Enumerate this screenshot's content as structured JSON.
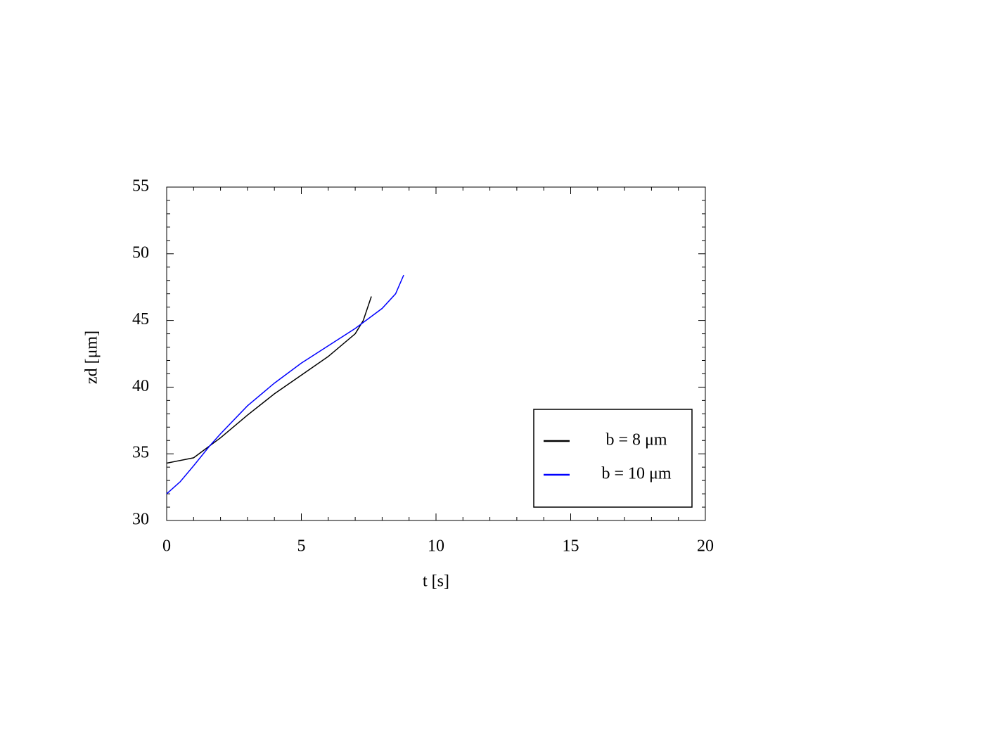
{
  "chart_data": {
    "type": "line",
    "x_label": "t [s]",
    "y_label": "zd [μm]",
    "series": [
      {
        "name": "b = 8 μm",
        "color": "#000000",
        "x": [
          0,
          1,
          1.6,
          2,
          3,
          4,
          5,
          6,
          7,
          7.3,
          7.6
        ],
        "values": [
          34.3,
          34.7,
          35.6,
          36.2,
          37.9,
          39.5,
          40.9,
          42.3,
          44.0,
          45.0,
          46.8
        ]
      },
      {
        "name": "b = 10 μm",
        "color": "#0000ff",
        "x": [
          0,
          0.5,
          1,
          1.6,
          2,
          3,
          4,
          5,
          6,
          7,
          8,
          8.5,
          8.8
        ],
        "values": [
          32.0,
          32.9,
          34.1,
          35.6,
          36.5,
          38.6,
          40.3,
          41.8,
          43.1,
          44.4,
          45.9,
          47.0,
          48.4
        ]
      }
    ],
    "xlim": [
      0,
      20
    ],
    "xticks": [
      0,
      5,
      10,
      15,
      20
    ],
    "ylim": [
      30,
      55
    ],
    "yticks": [
      30,
      35,
      40,
      45,
      50,
      55
    ],
    "grid": false,
    "legend": "lower right"
  }
}
